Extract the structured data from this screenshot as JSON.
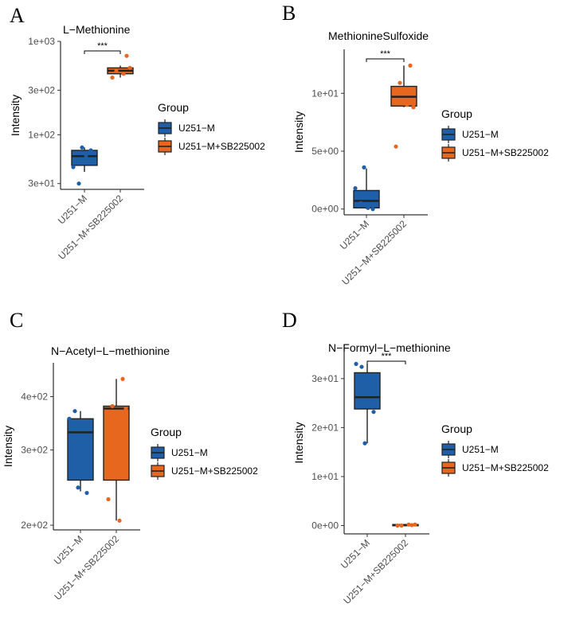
{
  "colors": {
    "U251-M": "#1f5fa8",
    "U251-M+SB225002": "#e8671e"
  },
  "legend": {
    "title": "Group",
    "entries": [
      "U251-M",
      "U251-M+SB225002"
    ]
  },
  "chart_data": [
    {
      "panel": "A",
      "type": "box",
      "title": "L−Methionine",
      "ylabel": "Intensity",
      "yscale": "log",
      "ylim": [
        26,
        1000
      ],
      "yticks": [
        30,
        100,
        300,
        1000
      ],
      "ytick_labels": [
        "3e+01",
        "1e+02",
        "3e+02",
        "1e+03"
      ],
      "categories": [
        "U251−M",
        "U251−M+SB225002"
      ],
      "boxes": [
        {
          "group": "U251-M",
          "min": 40,
          "q1": 47,
          "median": 59,
          "q3": 68,
          "max": 73
        },
        {
          "group": "U251-M+SB225002",
          "min": 410,
          "q1": 450,
          "median": 485,
          "q3": 520,
          "max": 550
        }
      ],
      "points": [
        [
          45,
          30,
          60,
          68,
          73
        ],
        [
          700,
          480,
          520,
          410,
          450
        ]
      ],
      "significance": "***"
    },
    {
      "panel": "B",
      "type": "box",
      "title": "MethionineSulfoxide",
      "ylabel": "Intensity",
      "yscale": "linear",
      "ylim": [
        -0.5,
        13.8
      ],
      "yticks": [
        0,
        5,
        10
      ],
      "ytick_labels": [
        "0e+00",
        "5e+00",
        "1e+01"
      ],
      "categories": [
        "U251−M",
        "U251−M+SB225002"
      ],
      "boxes": [
        {
          "group": "U251-M",
          "min": 0,
          "q1": 0.1,
          "median": 0.7,
          "q3": 1.6,
          "max": 3.5
        },
        {
          "group": "U251-M+SB225002",
          "min": 8.8,
          "q1": 8.9,
          "median": 9.7,
          "q3": 10.6,
          "max": 12.4
        }
      ],
      "points": [
        [
          1.8,
          0.5,
          0.1,
          0.0,
          3.6
        ],
        [
          12.4,
          10.9,
          8.8,
          5.4,
          9.0
        ]
      ],
      "significance": "***"
    },
    {
      "panel": "C",
      "type": "box",
      "title": "N−Acetyl−L−methionine",
      "ylabel": "Intensity",
      "yscale": "log",
      "ylim": [
        195,
        480
      ],
      "yticks": [
        200,
        300,
        400
      ],
      "ytick_labels": [
        "2e+02",
        "3e+02",
        "4e+02"
      ],
      "categories": [
        "U251−M",
        "U251−M+SB225002"
      ],
      "boxes": [
        {
          "group": "U251-M",
          "min": 240,
          "q1": 255,
          "median": 330,
          "q3": 355,
          "max": 370
        },
        {
          "group": "U251-M+SB225002",
          "min": 205,
          "q1": 255,
          "median": 375,
          "q3": 380,
          "max": 440
        }
      ],
      "points": [
        [
          355,
          370,
          260,
          238,
          245
        ],
        [
          440,
          380,
          375,
          230,
          205
        ]
      ],
      "significance": ""
    },
    {
      "panel": "D",
      "type": "box",
      "title": "N−Formyl−L−methionine",
      "ylabel": "Intensity",
      "yscale": "linear",
      "ylim": [
        -1.7,
        35.5
      ],
      "yticks": [
        0,
        10,
        20,
        30
      ],
      "ytick_labels": [
        "0e+00",
        "1e+01",
        "2e+01",
        "3e+01"
      ],
      "categories": [
        "U251−M",
        "U251−M+SB225002"
      ],
      "boxes": [
        {
          "group": "U251-M",
          "min": 16.8,
          "q1": 23.8,
          "median": 26.2,
          "q3": 31.2,
          "max": 33.0
        },
        {
          "group": "U251-M+SB225002",
          "min": 0,
          "q1": 0,
          "median": 0.1,
          "q3": 0.2,
          "max": 0.3
        }
      ],
      "points": [
        [
          33.0,
          32.4,
          25.0,
          23.2,
          16.8
        ],
        [
          0.1,
          0.0,
          0.2,
          0.0,
          0.2
        ]
      ],
      "significance": "***"
    }
  ]
}
